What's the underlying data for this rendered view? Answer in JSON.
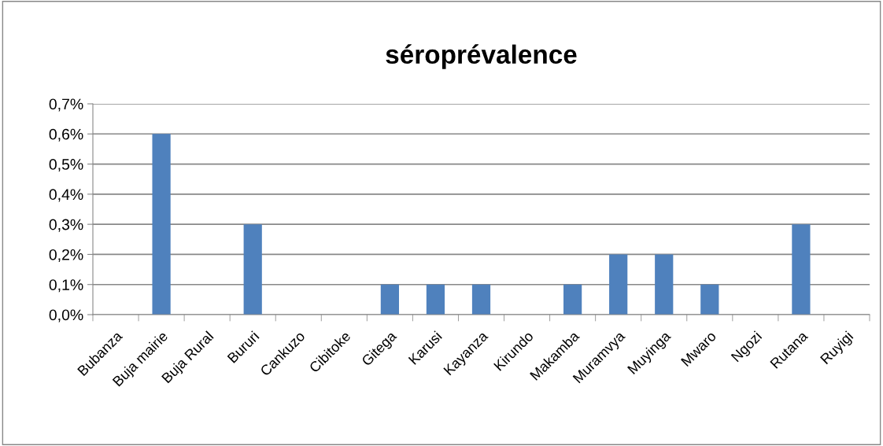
{
  "chart_data": {
    "type": "bar",
    "title": "séroprévalence",
    "categories": [
      "Bubanza",
      "Buja mairie",
      "Buja Rural",
      "Bururi",
      "Cankuzo",
      "Cibitoke",
      "Gitega",
      "Karusi",
      "Kayanza",
      "Kirundo",
      "Makamba",
      "Muramvya",
      "Muyinga",
      "Mwaro",
      "Ngozi",
      "Rutana",
      "Ruyigi"
    ],
    "values": [
      0,
      0.6,
      0,
      0.3,
      0,
      0,
      0.1,
      0.1,
      0.1,
      0,
      0.1,
      0.2,
      0.2,
      0.1,
      0,
      0.3,
      0
    ],
    "color": "#4f81bd",
    "ylim": [
      0,
      0.7
    ],
    "yticks": [
      {
        "value": 0,
        "label": "0,0%"
      },
      {
        "value": 0.1,
        "label": "0,1%"
      },
      {
        "value": 0.2,
        "label": "0,2%"
      },
      {
        "value": 0.3,
        "label": "0,3%"
      },
      {
        "value": 0.4,
        "label": "0,4%"
      },
      {
        "value": 0.5,
        "label": "0,5%"
      },
      {
        "value": 0.6,
        "label": "0,6%"
      },
      {
        "value": 0.7,
        "label": "0,7%"
      }
    ],
    "grid": "y"
  }
}
